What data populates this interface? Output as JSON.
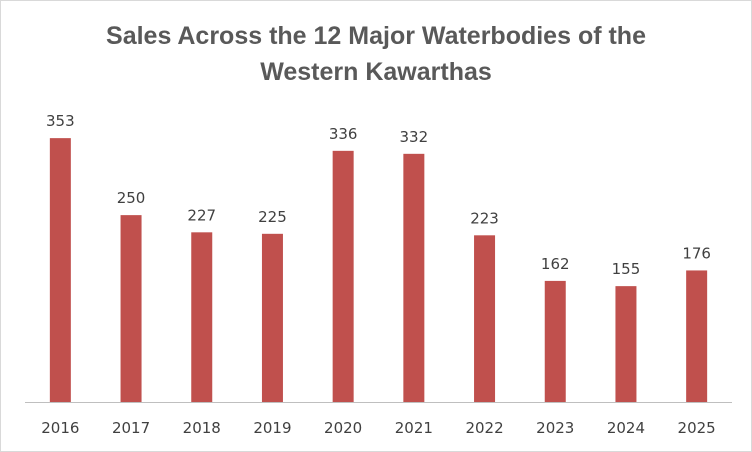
{
  "chart_data": {
    "type": "bar",
    "title_lines": [
      "Sales Across the 12 Major Waterbodies of the",
      "Western Kawarthas"
    ],
    "categories": [
      "2016",
      "2017",
      "2018",
      "2019",
      "2020",
      "2021",
      "2022",
      "2023",
      "2024",
      "2025"
    ],
    "series": [
      {
        "values": [
          353,
          250,
          227,
          225,
          336,
          332,
          223,
          162,
          155,
          176
        ]
      }
    ],
    "xlabel": "",
    "ylabel": "",
    "ylim": [
      0,
      400
    ],
    "grid": false,
    "legend": "none",
    "bar_color": "#c0504d",
    "data_labels": true
  }
}
